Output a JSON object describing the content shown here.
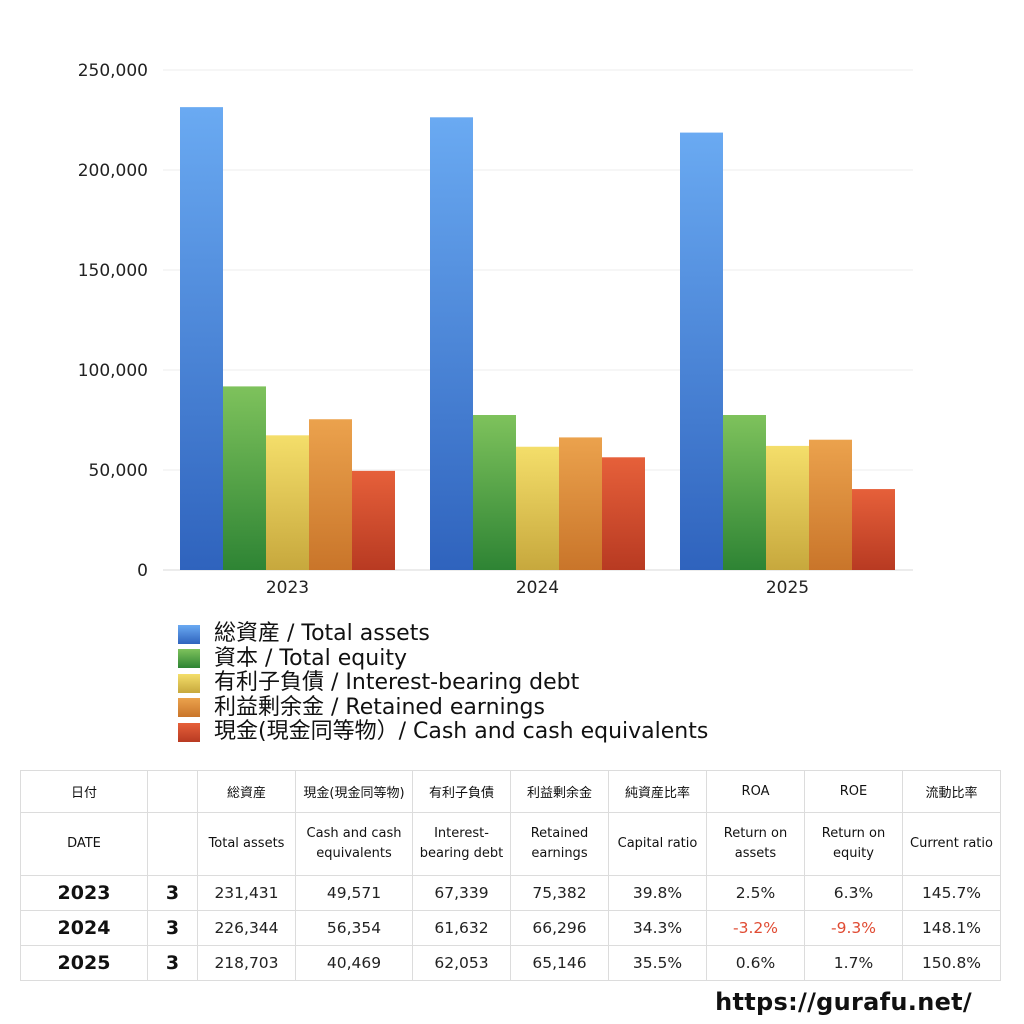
{
  "chart_data": {
    "type": "bar",
    "categories": [
      "2023",
      "2024",
      "2025"
    ],
    "ylim": [
      0,
      250000
    ],
    "yticks": [
      0,
      50000,
      100000,
      150000,
      200000,
      250000
    ],
    "ytick_labels": [
      "0",
      "50,000",
      "100,000",
      "150,000",
      "200,000",
      "250,000"
    ],
    "grid": true,
    "legend_position": "bottom",
    "series": [
      {
        "name": "総資産 / Total assets",
        "color": "#4a8fe0",
        "color_top": "#6aaaf2",
        "color_bottom": "#2f63bd",
        "values": [
          231431,
          226344,
          218703
        ]
      },
      {
        "name": "資本 / Total equity",
        "color": "#4f9e3e",
        "color_top": "#7ec25c",
        "color_bottom": "#2e8434",
        "values": [
          91800,
          77500,
          77500
        ]
      },
      {
        "name": "有利子負債 / Interest-bearing debt",
        "color": "#efd24a",
        "color_top": "#f4de6a",
        "color_bottom": "#c7a83d",
        "values": [
          67339,
          61632,
          62053
        ]
      },
      {
        "name": "利益剰余金 / Retained earnings",
        "color": "#e3903a",
        "color_top": "#eba24d",
        "color_bottom": "#c9752a",
        "values": [
          75382,
          66296,
          65146
        ]
      },
      {
        "name": "現金(現金同等物）/  Cash and cash equivalents",
        "color": "#df4f2f",
        "color_top": "#e6603a",
        "color_bottom": "#b83a22",
        "values": [
          49571,
          56354,
          40469
        ]
      }
    ]
  },
  "table": {
    "headers_jp": [
      "日付",
      "",
      "総資産",
      "現金(現金同等物)",
      "有利子負債",
      "利益剰余金",
      "純資産比率",
      "ROA",
      "ROE",
      "流動比率"
    ],
    "headers_en": [
      "DATE",
      "",
      "Total assets",
      "Cash and cash equivalents",
      "Interest-bearing debt",
      "Retained earnings",
      "Capital ratio",
      "Return on assets",
      "Return on equity",
      "Current ratio"
    ],
    "rows": [
      {
        "year": "2023",
        "month": "3",
        "total_assets": "231,431",
        "cash": "49,571",
        "debt": "67,339",
        "retained": "75,382",
        "capital_ratio": "39.8%",
        "roa": "2.5%",
        "roe": "6.3%",
        "current_ratio": "145.7%"
      },
      {
        "year": "2024",
        "month": "3",
        "total_assets": "226,344",
        "cash": "56,354",
        "debt": "61,632",
        "retained": "66,296",
        "capital_ratio": "34.3%",
        "roa": "-3.2%",
        "roe": "-9.3%",
        "current_ratio": "148.1%"
      },
      {
        "year": "2025",
        "month": "3",
        "total_assets": "218,703",
        "cash": "40,469",
        "debt": "62,053",
        "retained": "65,146",
        "capital_ratio": "35.5%",
        "roa": "0.6%",
        "roe": "1.7%",
        "current_ratio": "150.8%"
      }
    ],
    "negative_color": "#e04b33"
  },
  "footer": {
    "url": "https://gurafu.net/"
  }
}
